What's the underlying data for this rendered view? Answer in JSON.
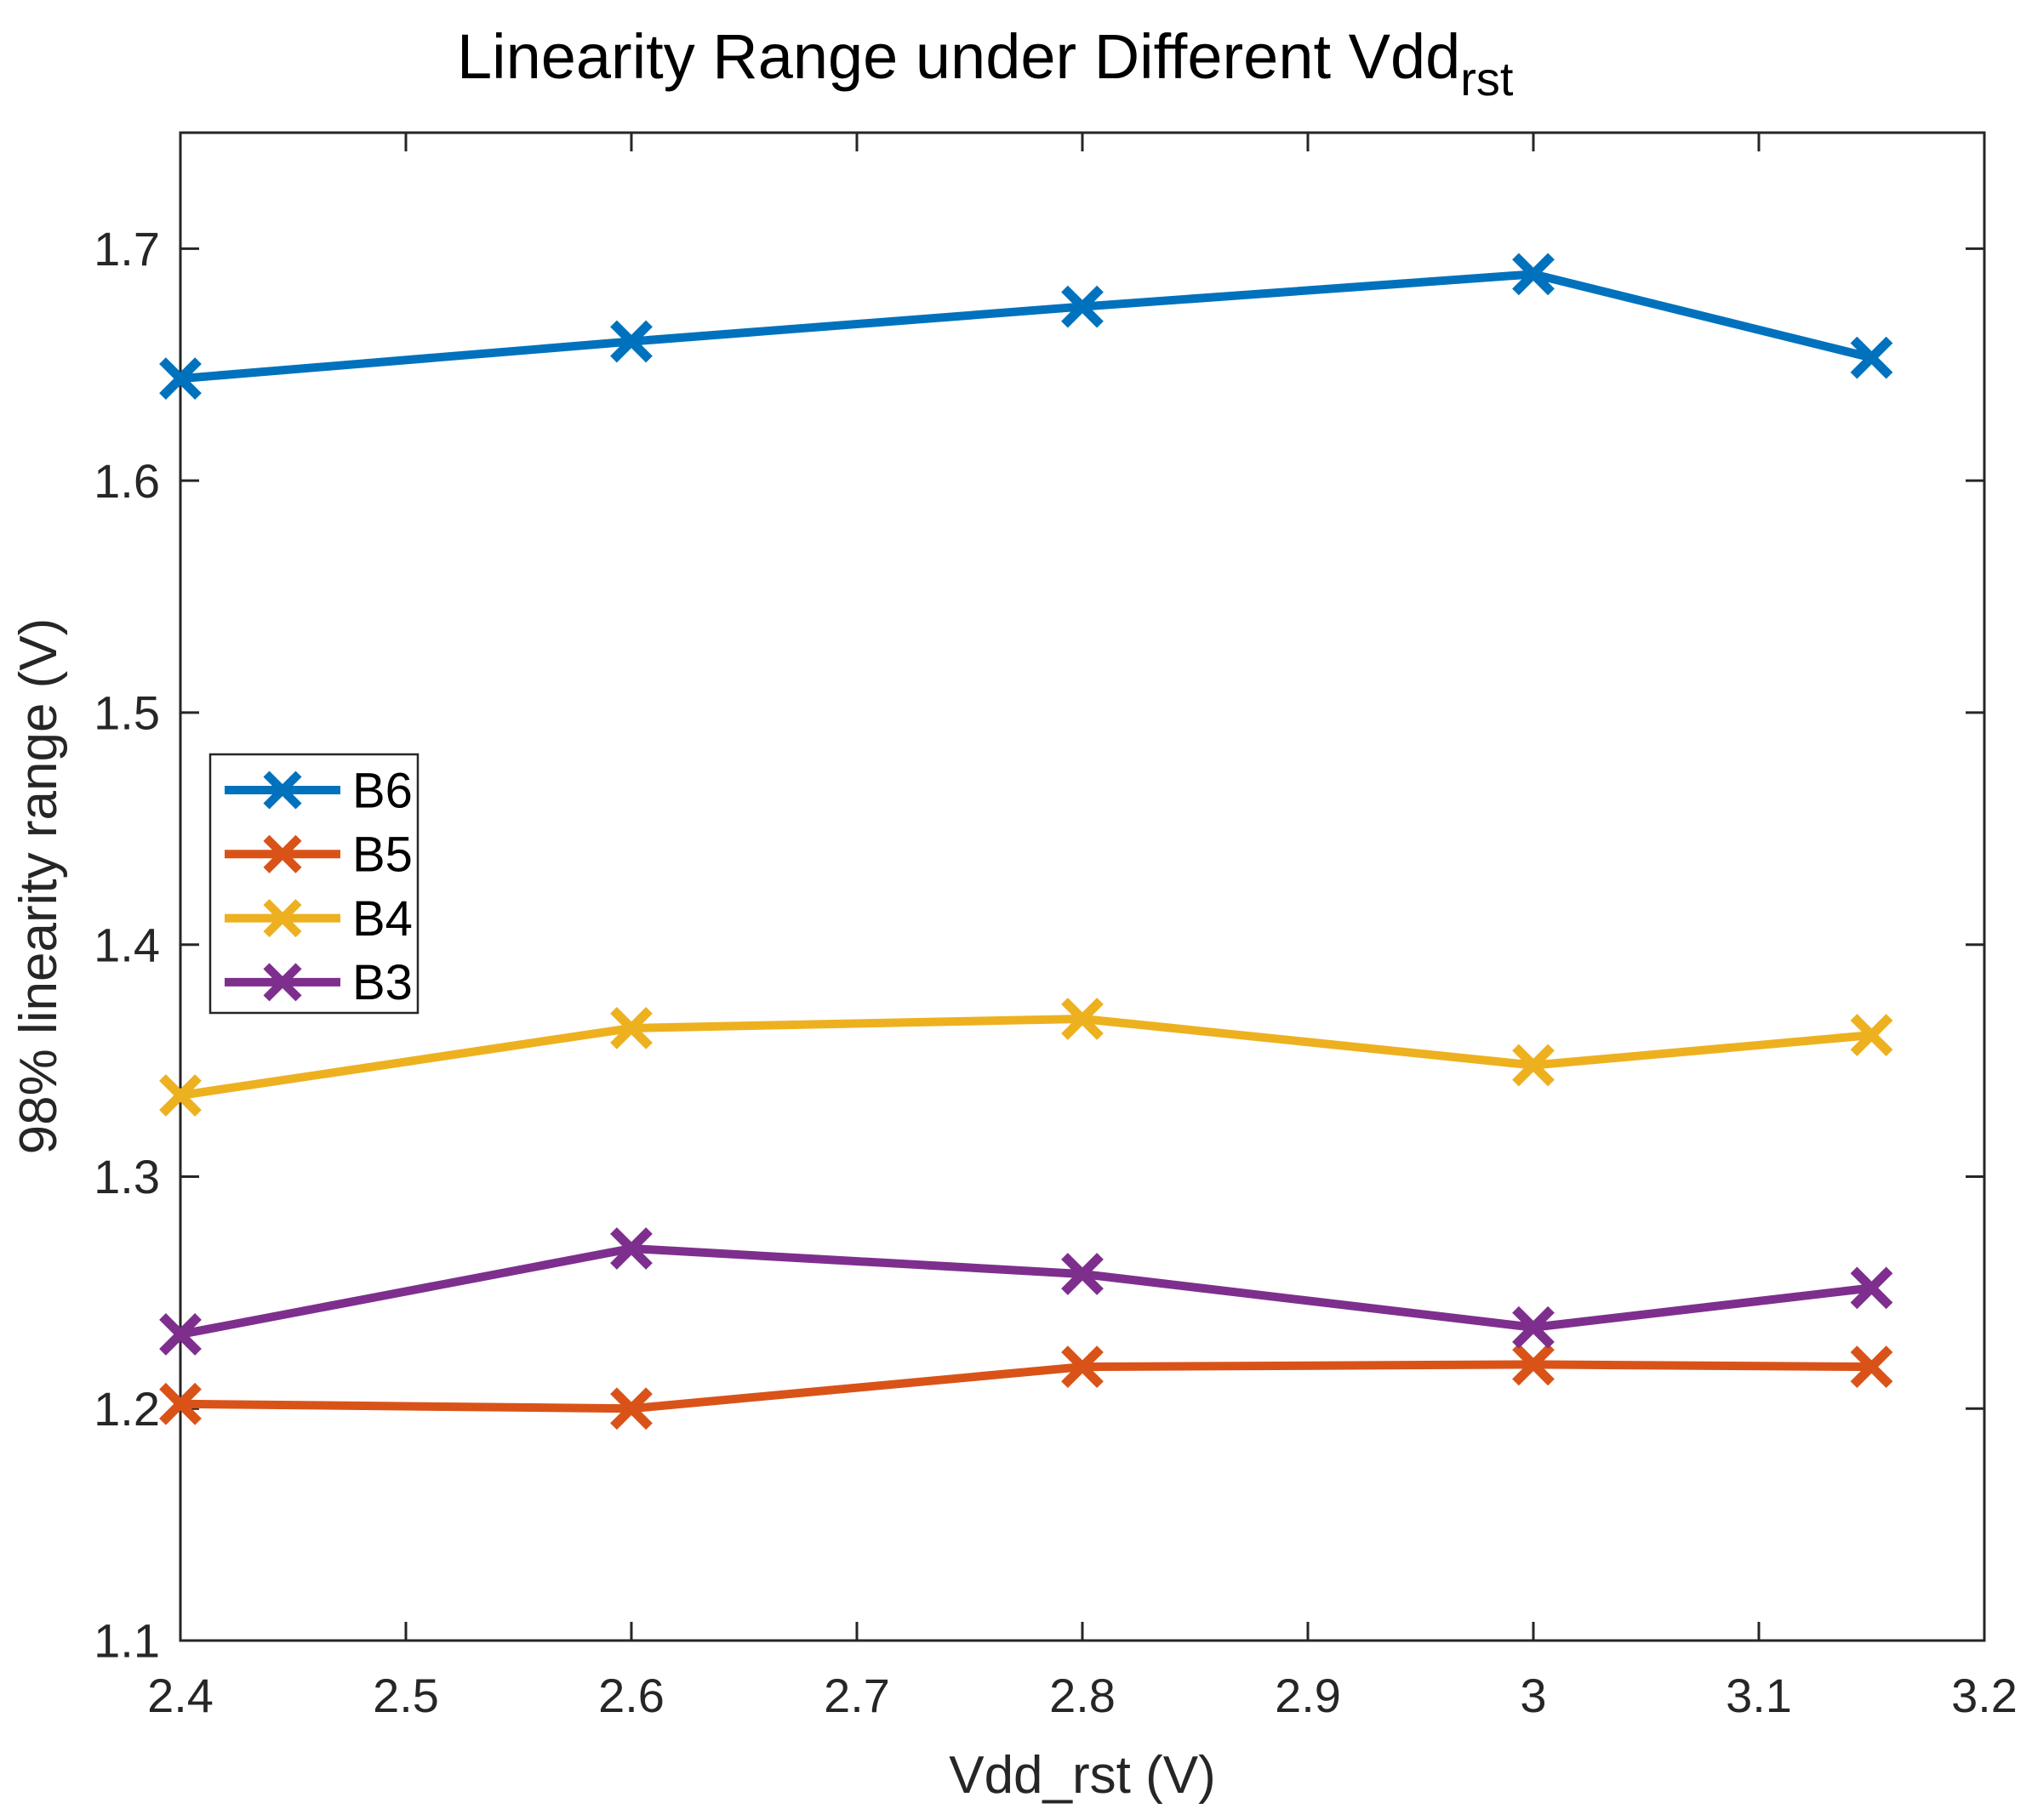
{
  "figure": {
    "title": {
      "text": "Linearity Range under Different Vdd",
      "subscript": "rst"
    },
    "xlabel": "Vdd_rst (V)",
    "ylabel": "98% linearity range (V)"
  },
  "chart_data": {
    "type": "line",
    "title": "Linearity Range under Different Vdd_rst",
    "xlabel": "Vdd_rst (V)",
    "ylabel": "98% linearity range (V)",
    "x": [
      2.4,
      2.6,
      2.8,
      3.0,
      3.15
    ],
    "series": [
      {
        "name": "B6",
        "color": "#0072BD",
        "values": [
          1.644,
          1.66,
          1.675,
          1.689,
          1.653
        ]
      },
      {
        "name": "B5",
        "color": "#D95319",
        "values": [
          1.202,
          1.2,
          1.218,
          1.219,
          1.218
        ]
      },
      {
        "name": "B4",
        "color": "#EDB120",
        "values": [
          1.335,
          1.364,
          1.368,
          1.348,
          1.361
        ]
      },
      {
        "name": "B3",
        "color": "#7E2F8E",
        "values": [
          1.232,
          1.269,
          1.258,
          1.235,
          1.252
        ]
      }
    ],
    "marker": "x",
    "grid": false,
    "xlim": [
      2.4,
      3.2
    ],
    "ylim": [
      1.1,
      1.75
    ],
    "xticks": {
      "values": [
        2.4,
        2.5,
        2.6,
        2.7,
        2.8,
        2.9,
        3.0,
        3.1,
        3.2
      ],
      "labels": [
        "2.4",
        "2.5",
        "2.6",
        "2.7",
        "2.8",
        "2.9",
        "3",
        "3.1",
        "3.2"
      ]
    },
    "yticks": {
      "values": [
        1.1,
        1.2,
        1.3,
        1.4,
        1.5,
        1.6,
        1.7
      ],
      "labels": [
        "1.1",
        "1.2",
        "1.3",
        "1.4",
        "1.5",
        "1.6",
        "1.7"
      ]
    },
    "legend": {
      "position": "inside-left-middle",
      "entries": [
        "B6",
        "B5",
        "B4",
        "B3"
      ]
    },
    "axis_color": "#262626"
  }
}
